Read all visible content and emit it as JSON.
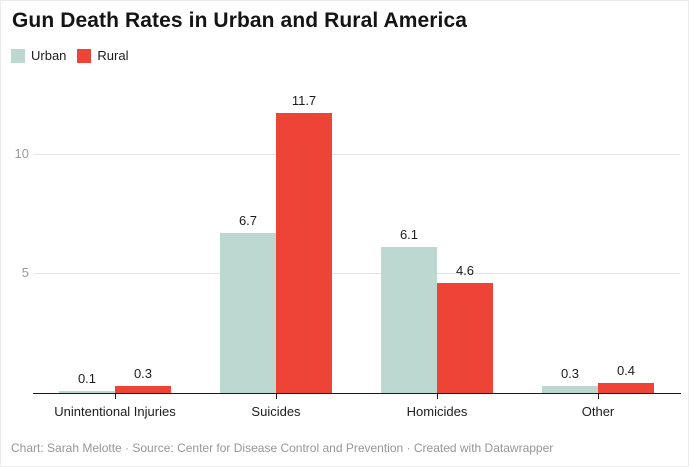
{
  "header": {
    "title": "Gun Death Rates in Urban and Rural America"
  },
  "legend": {
    "items": [
      {
        "label": "Urban",
        "color": "#bdd8d1"
      },
      {
        "label": "Rural",
        "color": "#ee4438"
      }
    ]
  },
  "chart_data": {
    "type": "bar",
    "title": "Gun Death Rates in Urban and Rural America",
    "categories": [
      "Unintentional Injuries",
      "Suicides",
      "Homicides",
      "Other"
    ],
    "series": [
      {
        "name": "Urban",
        "color": "#bdd8d1",
        "values": [
          0.1,
          6.7,
          6.1,
          0.3
        ]
      },
      {
        "name": "Rural",
        "color": "#ee4438",
        "values": [
          0.3,
          11.7,
          4.6,
          0.4
        ]
      }
    ],
    "xlabel": "",
    "ylabel": "",
    "yticks": [
      5,
      10
    ],
    "ylim": [
      0,
      12
    ],
    "grid": true,
    "legend_position": "top-left",
    "value_labels": true,
    "axis_text_color": "#9a9a9a",
    "gridline_color": "#e4e4e4"
  },
  "footer": {
    "text": "Chart: Sarah Melotte · Source: Center for Disease Control and Prevention · Created with Datawrapper"
  }
}
